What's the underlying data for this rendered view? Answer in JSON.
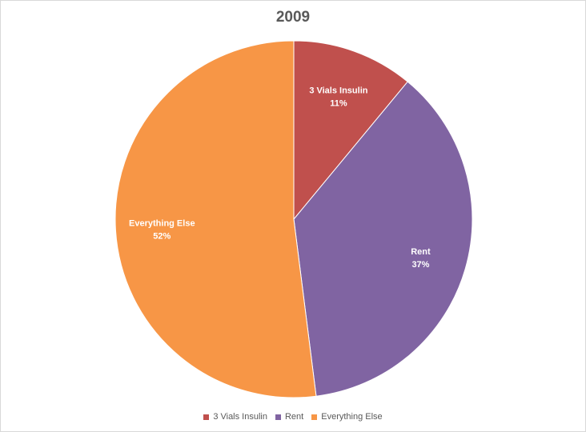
{
  "chart_data": {
    "type": "pie",
    "title": "2009",
    "categories": [
      "3 Vials Insulin",
      "Rent",
      "Everything Else"
    ],
    "values": [
      11,
      37,
      52
    ],
    "value_labels": [
      "11%",
      "37%",
      "52%"
    ],
    "colors": [
      "#c0504d",
      "#8064a2",
      "#f79646"
    ],
    "legend_position": "bottom",
    "data_label_color": "#ffffff"
  }
}
